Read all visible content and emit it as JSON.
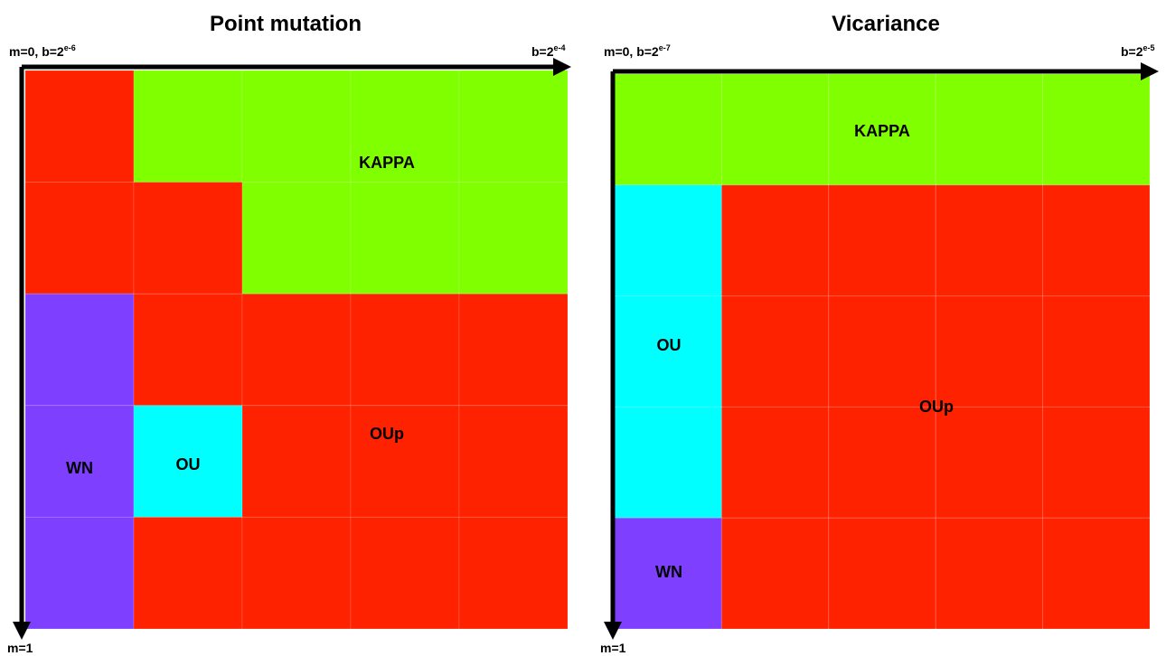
{
  "panels": [
    {
      "title": "Point mutation",
      "top_left": {
        "text": "m=0, b=2",
        "sup": "e-6"
      },
      "top_right": {
        "text": "b=2",
        "sup": "e-4"
      },
      "bottom_left": "m=1",
      "regions": [
        "KAPPA",
        "OUp",
        "WN",
        "OU"
      ]
    },
    {
      "title": "Vicariance",
      "top_left": {
        "text": "m=0, b=2",
        "sup": "e-7"
      },
      "top_right": {
        "text": "b=2",
        "sup": "e-5"
      },
      "bottom_left": "m=1",
      "regions": [
        "KAPPA",
        "OU",
        "OUp",
        "WN"
      ]
    }
  ]
}
